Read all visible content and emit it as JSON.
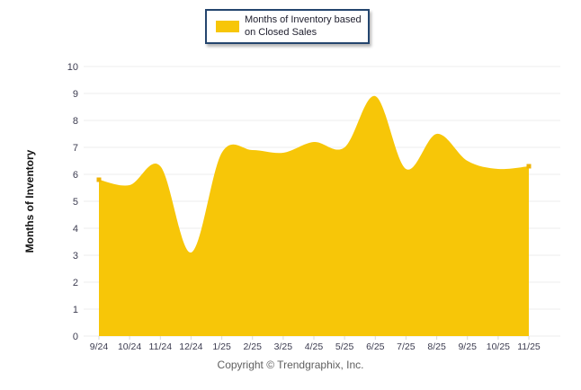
{
  "legend": {
    "label": "Months of Inventory based on Closed Sales"
  },
  "axes": {
    "y_title": "Months of Inventory"
  },
  "footer": {
    "copyright": "Copyright © Trendgraphix, Inc."
  },
  "colors": {
    "area": "#F7C608",
    "marker": "#EFB306",
    "grid": "#ECECEC",
    "tick": "#D8D8D8",
    "tick_text": "#3C3C50",
    "legend_border": "#24456E"
  },
  "chart_data": {
    "type": "area",
    "title": "",
    "categories": [
      "9/24",
      "10/24",
      "11/24",
      "12/24",
      "1/25",
      "2/25",
      "3/25",
      "4/25",
      "5/25",
      "6/25",
      "7/25",
      "8/25",
      "9/25",
      "10/25",
      "11/25"
    ],
    "series": [
      {
        "name": "Months of Inventory based on Closed Sales",
        "values": [
          5.8,
          5.6,
          6.3,
          3.1,
          6.8,
          6.9,
          6.8,
          7.2,
          7.0,
          8.9,
          6.2,
          7.5,
          6.5,
          6.2,
          6.3
        ]
      }
    ],
    "xlabel": "",
    "ylabel": "Months of Inventory",
    "ylim": [
      0,
      10
    ],
    "ytick_step": 1,
    "grid": true,
    "legend_position": "top-center",
    "line_smoothing": "spline",
    "markers": "endpoints-only"
  }
}
